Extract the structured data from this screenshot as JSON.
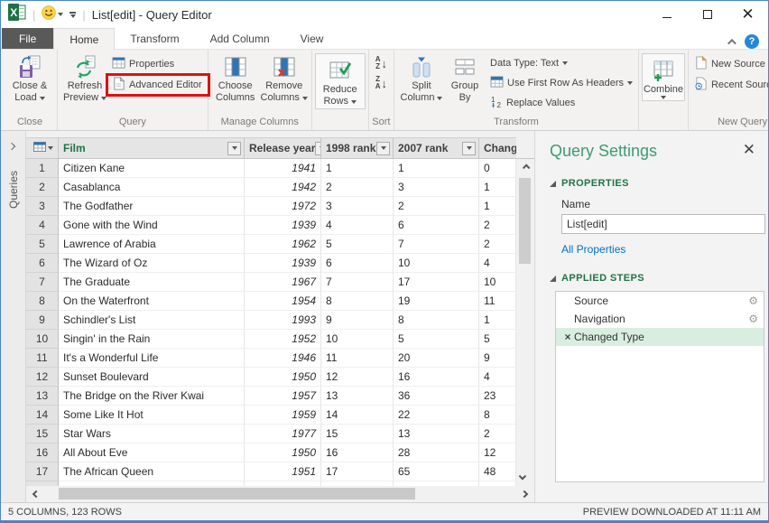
{
  "title_bar": {
    "title": "List[edit] - Query Editor"
  },
  "tabs": {
    "file": "File",
    "home": "Home",
    "transform": "Transform",
    "add_column": "Add Column",
    "view": "View"
  },
  "ribbon": {
    "close_load": {
      "line1": "Close &",
      "line2": "Load"
    },
    "refresh": {
      "line1": "Refresh",
      "line2": "Preview"
    },
    "properties": "Properties",
    "advanced_editor": "Advanced Editor",
    "choose_columns": {
      "line1": "Choose",
      "line2": "Columns"
    },
    "remove_columns": {
      "line1": "Remove",
      "line2": "Columns"
    },
    "reduce_rows": {
      "line1": "Reduce",
      "line2": "Rows"
    },
    "split_column": {
      "line1": "Split",
      "line2": "Column"
    },
    "group_by": {
      "line1": "Group",
      "line2": "By"
    },
    "data_type": "Data Type: Text",
    "first_row_headers": "Use First Row As Headers",
    "replace_values": "Replace Values",
    "combine": "Combine",
    "new_source": "New Source",
    "recent_sources": "Recent Sources",
    "groups": {
      "close": "Close",
      "query": "Query",
      "manage_columns": "Manage Columns",
      "sort": "Sort",
      "transform": "Transform",
      "new_query": "New Query"
    }
  },
  "sidebar": {
    "label": "Queries"
  },
  "table": {
    "headers": {
      "film": "Film",
      "release_year": "Release year",
      "rank_1998": "1998 rank",
      "rank_2007": "2007 rank",
      "change": "Change"
    },
    "rows": [
      {
        "n": 1,
        "film": "Citizen Kane",
        "year": 1941,
        "rank_1998": 1,
        "rank_2007": 1,
        "change": 0
      },
      {
        "n": 2,
        "film": "Casablanca",
        "year": 1942,
        "rank_1998": 2,
        "rank_2007": 3,
        "change": 1
      },
      {
        "n": 3,
        "film": "The Godfather",
        "year": 1972,
        "rank_1998": 3,
        "rank_2007": 2,
        "change": 1
      },
      {
        "n": 4,
        "film": "Gone with the Wind",
        "year": 1939,
        "rank_1998": 4,
        "rank_2007": 6,
        "change": 2
      },
      {
        "n": 5,
        "film": "Lawrence of Arabia",
        "year": 1962,
        "rank_1998": 5,
        "rank_2007": 7,
        "change": 2
      },
      {
        "n": 6,
        "film": "The Wizard of Oz",
        "year": 1939,
        "rank_1998": 6,
        "rank_2007": 10,
        "change": 4
      },
      {
        "n": 7,
        "film": "The Graduate",
        "year": 1967,
        "rank_1998": 7,
        "rank_2007": 17,
        "change": 10
      },
      {
        "n": 8,
        "film": "On the Waterfront",
        "year": 1954,
        "rank_1998": 8,
        "rank_2007": 19,
        "change": 11
      },
      {
        "n": 9,
        "film": "Schindler's List",
        "year": 1993,
        "rank_1998": 9,
        "rank_2007": 8,
        "change": 1
      },
      {
        "n": 10,
        "film": "Singin' in the Rain",
        "year": 1952,
        "rank_1998": 10,
        "rank_2007": 5,
        "change": 5
      },
      {
        "n": 11,
        "film": "It's a Wonderful Life",
        "year": 1946,
        "rank_1998": 11,
        "rank_2007": 20,
        "change": 9
      },
      {
        "n": 12,
        "film": "Sunset Boulevard",
        "year": 1950,
        "rank_1998": 12,
        "rank_2007": 16,
        "change": 4
      },
      {
        "n": 13,
        "film": "The Bridge on the River Kwai",
        "year": 1957,
        "rank_1998": 13,
        "rank_2007": 36,
        "change": 23
      },
      {
        "n": 14,
        "film": "Some Like It Hot",
        "year": 1959,
        "rank_1998": 14,
        "rank_2007": 22,
        "change": 8
      },
      {
        "n": 15,
        "film": "Star Wars",
        "year": 1977,
        "rank_1998": 15,
        "rank_2007": 13,
        "change": 2
      },
      {
        "n": 16,
        "film": "All About Eve",
        "year": 1950,
        "rank_1998": 16,
        "rank_2007": 28,
        "change": 12
      },
      {
        "n": 17,
        "film": "The African Queen",
        "year": 1951,
        "rank_1998": 17,
        "rank_2007": 65,
        "change": 48
      }
    ]
  },
  "query_settings": {
    "title": "Query Settings",
    "properties_header": "PROPERTIES",
    "name_label": "Name",
    "name_value": "List[edit]",
    "all_properties": "All Properties",
    "applied_steps_header": "APPLIED STEPS",
    "steps": [
      {
        "label": "Source",
        "gear": true,
        "selected": false
      },
      {
        "label": "Navigation",
        "gear": true,
        "selected": false
      },
      {
        "label": "Changed Type",
        "gear": false,
        "selected": true
      }
    ]
  },
  "status_bar": {
    "left": "5 COLUMNS, 123 ROWS",
    "right": "PREVIEW DOWNLOADED AT 11:11 AM"
  },
  "colors": {
    "accent_green": "#217346",
    "panel_title_green": "#3d9b72",
    "link_blue": "#0072c6",
    "selection_green": "#d9eee1",
    "annotation_red": "#e01010",
    "window_border_blue": "#4a86c8"
  }
}
